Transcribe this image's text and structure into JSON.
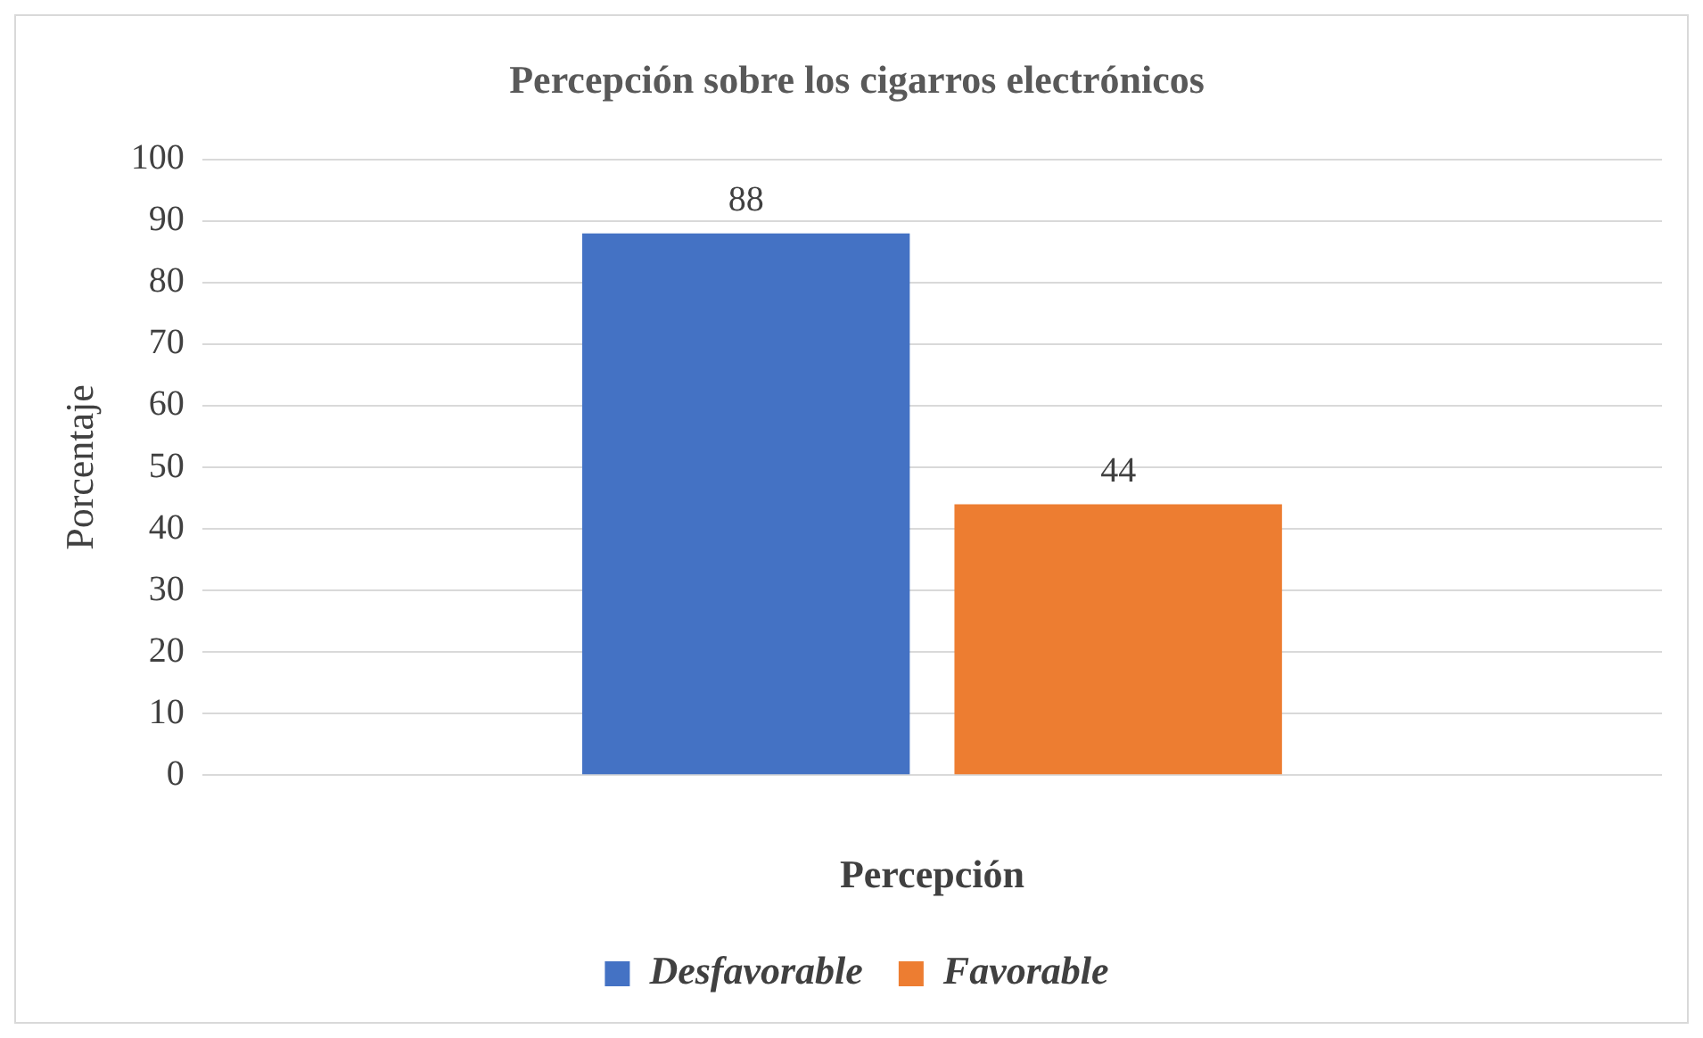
{
  "chart_data": {
    "type": "bar",
    "title": "Percepción sobre los cigarros electrónicos",
    "xlabel": "Percepción",
    "ylabel": "Porcentaje",
    "categories": [
      null
    ],
    "series": [
      {
        "name": "Desfavorable",
        "color": "#4472c4",
        "values": [
          88
        ]
      },
      {
        "name": "Favorable",
        "color": "#ed7d31",
        "values": [
          44
        ]
      }
    ],
    "ylim": [
      0,
      100
    ],
    "yticks": [
      0,
      10,
      20,
      30,
      40,
      50,
      60,
      70,
      80,
      90,
      100
    ],
    "grid": "y",
    "legend": "bottom",
    "data_labels": true
  }
}
